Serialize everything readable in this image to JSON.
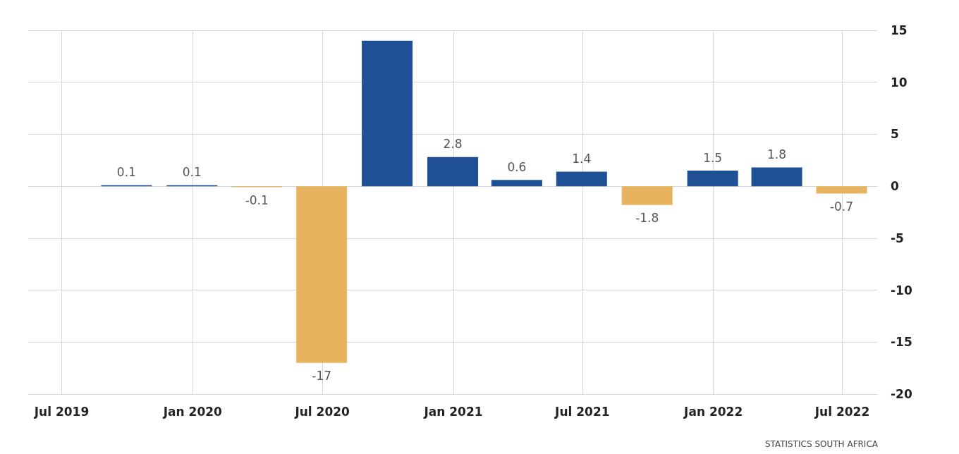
{
  "chart_data": {
    "type": "bar",
    "x": [
      "2019-09-30",
      "2019-12-31",
      "2020-03-31",
      "2020-06-30",
      "2020-09-30",
      "2020-12-31",
      "2021-03-31",
      "2021-06-30",
      "2021-09-30",
      "2021-12-31",
      "2022-03-31",
      "2022-06-30"
    ],
    "values": [
      0.1,
      0.1,
      -0.1,
      -17,
      14,
      2.8,
      0.6,
      1.4,
      -1.8,
      1.5,
      1.8,
      -0.7
    ],
    "value_labels": [
      "0.1",
      "0.1",
      "-0.1",
      "-17",
      null,
      "2.8",
      "0.6",
      "1.4",
      "-1.8",
      "1.5",
      "1.8",
      "-0.7"
    ],
    "colors": [
      "#1f5096",
      "#1f5096",
      "#e8b35f",
      "#e8b35f",
      "#1f5096",
      "#1f5096",
      "#1f5096",
      "#1f5096",
      "#e8b35f",
      "#1f5096",
      "#1f5096",
      "#e8b35f"
    ],
    "xlim": [
      "2019-05-15",
      "2022-08-20"
    ],
    "xticks": [
      {
        "value": "2019-07-01",
        "label": "Jul 2019"
      },
      {
        "value": "2020-01-01",
        "label": "Jan 2020"
      },
      {
        "value": "2020-07-01",
        "label": "Jul 2020"
      },
      {
        "value": "2021-01-01",
        "label": "Jan 2021"
      },
      {
        "value": "2021-07-01",
        "label": "Jul 2021"
      },
      {
        "value": "2022-01-01",
        "label": "Jan 2022"
      },
      {
        "value": "2022-07-01",
        "label": "Jul 2022"
      }
    ],
    "ylim": [
      -20,
      15
    ],
    "yticks": [
      -20,
      -15,
      -10,
      -5,
      0,
      5,
      10,
      15
    ],
    "grid": true,
    "annotations": [
      "STATISTICS SOUTH AFRICA"
    ]
  }
}
